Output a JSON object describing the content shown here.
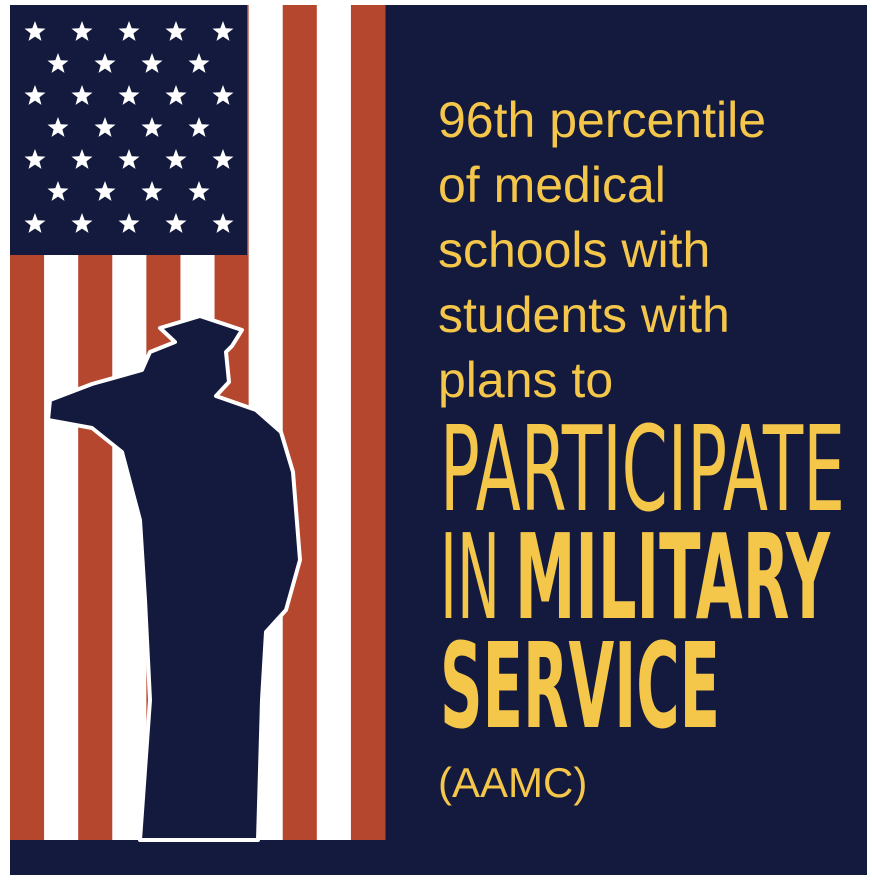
{
  "poster": {
    "lines": [
      "96th percentile",
      "of medical",
      "schools with",
      "students with",
      "plans to"
    ],
    "emphasis": [
      "PARTICIPATE",
      "IN",
      "MILITARY",
      "SERVICE"
    ],
    "source": "(AAMC)"
  }
}
